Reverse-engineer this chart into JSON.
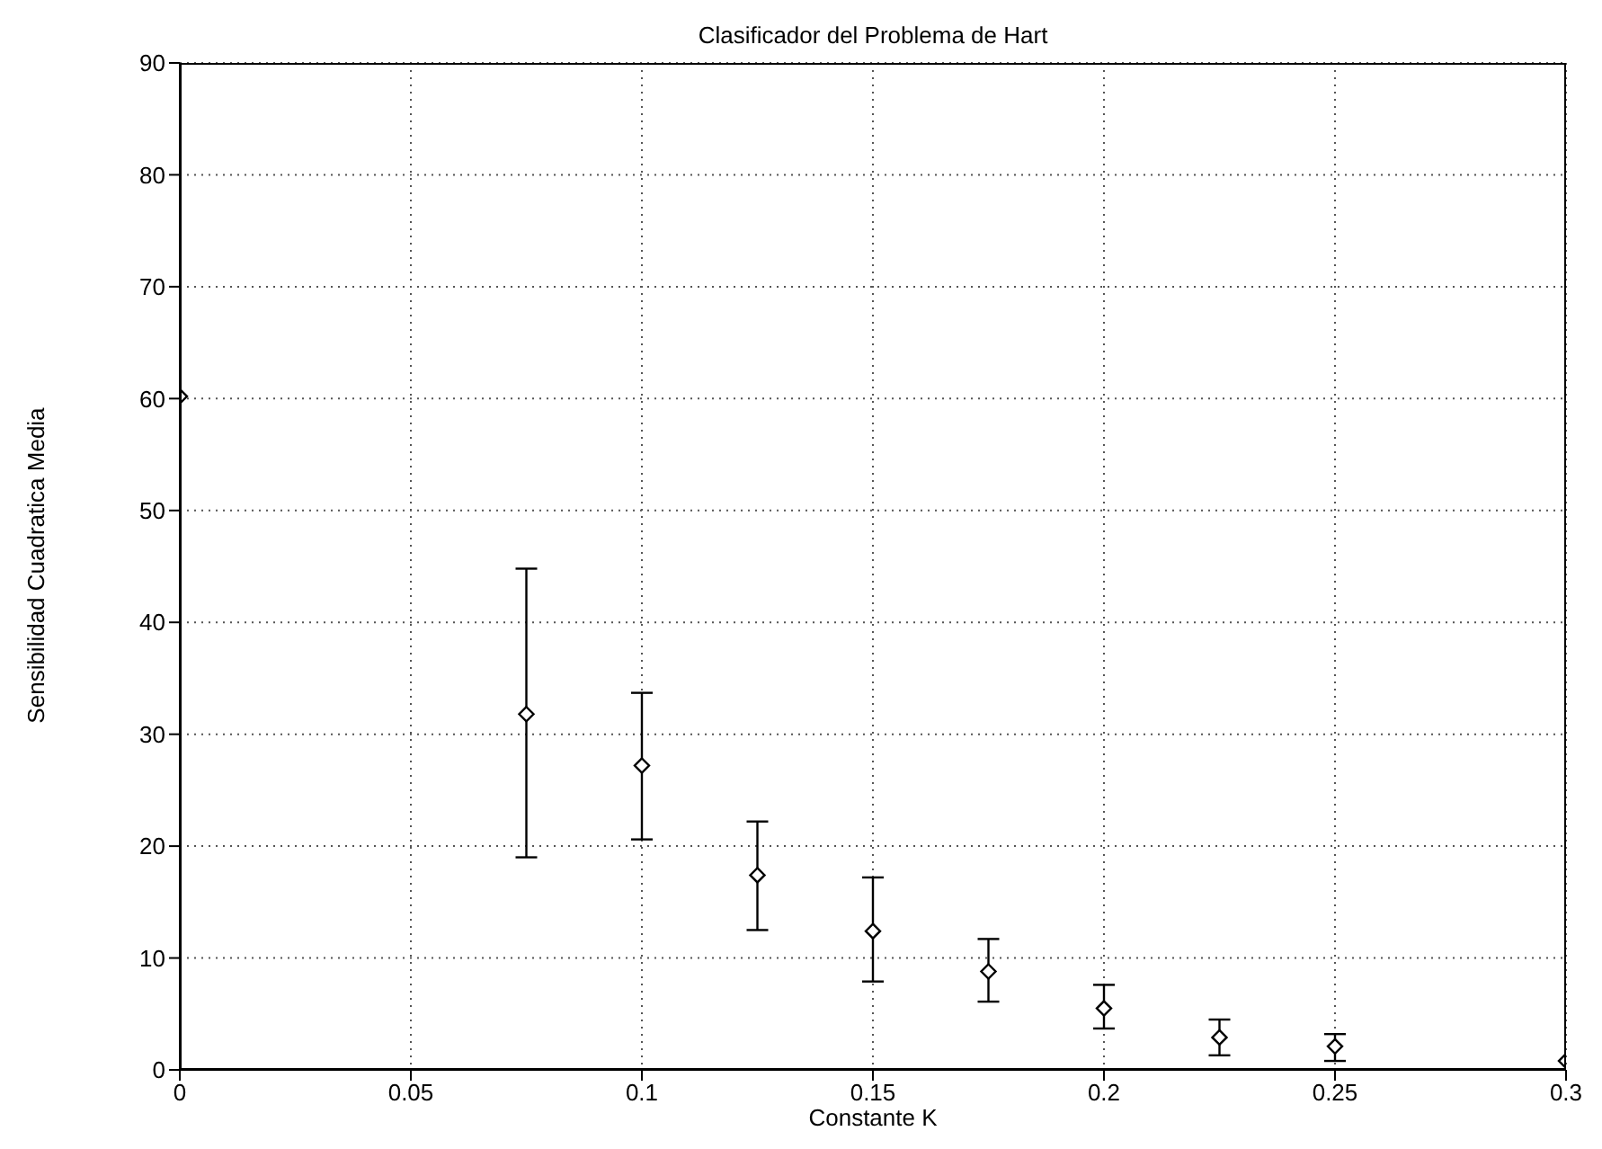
{
  "chart_data": {
    "type": "scatter",
    "title": "Clasificador del Problema de Hart",
    "xlabel": "Constante K",
    "ylabel": "Sensibilidad Cuadratica Media",
    "x": [
      0,
      0.075,
      0.1,
      0.125,
      0.15,
      0.175,
      0.2,
      0.225,
      0.25,
      0.3
    ],
    "values": [
      60.2,
      31.8,
      27.2,
      17.4,
      12.4,
      8.8,
      5.5,
      2.9,
      2.1,
      0.8
    ],
    "errors": [
      null,
      [
        19.0,
        44.8
      ],
      [
        20.6,
        33.7
      ],
      [
        12.5,
        22.2
      ],
      [
        7.9,
        17.2
      ],
      [
        6.1,
        11.7
      ],
      [
        3.7,
        7.6
      ],
      [
        1.3,
        4.5
      ],
      [
        0.8,
        3.2
      ],
      null
    ],
    "color": "#000000",
    "marker": "diamond",
    "grid": true,
    "xlim": [
      0,
      0.3
    ],
    "xticks": [
      0,
      0.05,
      0.1,
      0.15,
      0.2,
      0.25,
      0.3
    ],
    "ylim": [
      0,
      90
    ],
    "yticks": [
      0,
      10,
      20,
      30,
      40,
      50,
      60,
      70,
      80,
      90
    ]
  }
}
